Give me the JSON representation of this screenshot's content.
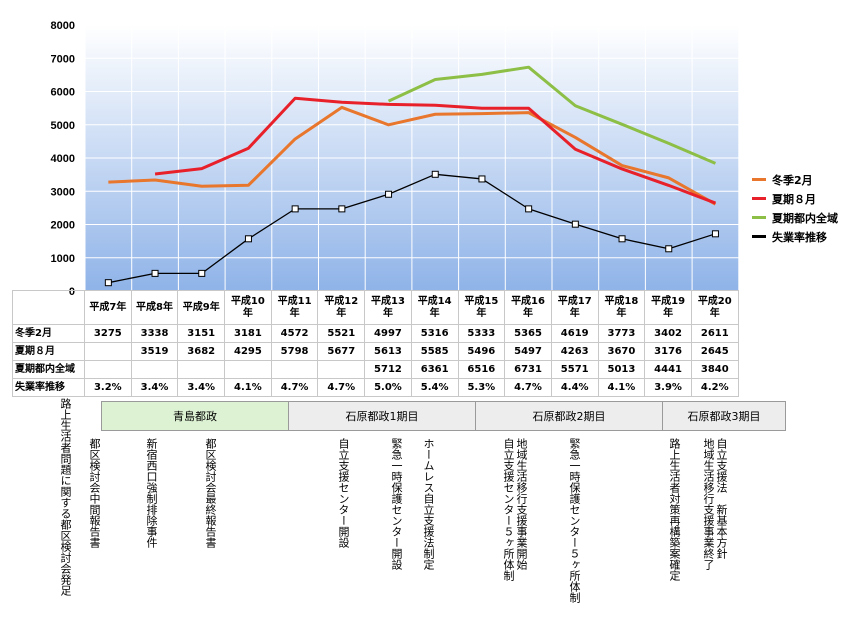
{
  "chart_data": {
    "type": "line",
    "categories": [
      "平成7年",
      "平成8年",
      "平成9年",
      "平成10年",
      "平成11年",
      "平成12年",
      "平成13年",
      "平成14年",
      "平成15年",
      "平成16年",
      "平成17年",
      "平成18年",
      "平成19年",
      "平成20年"
    ],
    "category_display": [
      [
        "平成7年"
      ],
      [
        "平成8年"
      ],
      [
        "平成9年"
      ],
      [
        "平成10",
        "年"
      ],
      [
        "平成11",
        "年"
      ],
      [
        "平成12",
        "年"
      ],
      [
        "平成13",
        "年"
      ],
      [
        "平成14",
        "年"
      ],
      [
        "平成15",
        "年"
      ],
      [
        "平成16",
        "年"
      ],
      [
        "平成17",
        "年"
      ],
      [
        "平成18",
        "年"
      ],
      [
        "平成19",
        "年"
      ],
      [
        "平成20",
        "年"
      ]
    ],
    "ylim": [
      0,
      8000
    ],
    "yticks": [
      "0",
      "1000",
      "2000",
      "3000",
      "4000",
      "5000",
      "6000",
      "7000",
      "8000"
    ],
    "grid": true,
    "legend_position": "right",
    "series": [
      {
        "name": "冬季2月",
        "color": "#e8762c",
        "values": [
          3275,
          3338,
          3151,
          3181,
          4572,
          5521,
          4997,
          5316,
          5333,
          5365,
          4619,
          3773,
          3402,
          2611
        ]
      },
      {
        "name": "夏期８月",
        "color": "#e8202a",
        "values": [
          null,
          3519,
          3682,
          4295,
          5798,
          5677,
          5613,
          5585,
          5496,
          5497,
          4263,
          3670,
          3176,
          2645
        ]
      },
      {
        "name": "夏期都内全域",
        "color": "#8dbf46",
        "values": [
          null,
          null,
          null,
          null,
          null,
          null,
          5712,
          6361,
          6516,
          6731,
          5571,
          5013,
          4441,
          3840
        ]
      },
      {
        "name": "失業率推移",
        "color": "#000000",
        "secondary_axis_note": "unemployment rate",
        "values": [
          3.2,
          3.4,
          3.4,
          4.1,
          4.7,
          4.7,
          5.0,
          5.4,
          5.3,
          4.7,
          4.4,
          4.1,
          3.9,
          4.2
        ],
        "display": [
          "3.2%",
          "3.4%",
          "3.4%",
          "4.1%",
          "4.7%",
          "4.7%",
          "5.0%",
          "5.4%",
          "5.3%",
          "4.7%",
          "4.4%",
          "4.1%",
          "3.9%",
          "4.2%"
        ],
        "plot_values": [
          250,
          530,
          530,
          1570,
          2470,
          2470,
          2910,
          3510,
          3370,
          2470,
          2010,
          1570,
          1270,
          1720
        ]
      }
    ]
  },
  "table": {
    "rows": [
      {
        "label": "冬季2月",
        "cells": [
          "3275",
          "3338",
          "3151",
          "3181",
          "4572",
          "5521",
          "4997",
          "5316",
          "5333",
          "5365",
          "4619",
          "3773",
          "3402",
          "2611"
        ]
      },
      {
        "label": "夏期８月",
        "cells": [
          "",
          "3519",
          "3682",
          "4295",
          "5798",
          "5677",
          "5613",
          "5585",
          "5496",
          "5497",
          "4263",
          "3670",
          "3176",
          "2645"
        ]
      },
      {
        "label": "夏期都内全域",
        "cells": [
          "",
          "",
          "",
          "",
          "",
          "",
          "5712",
          "6361",
          "6516",
          "6731",
          "5571",
          "5013",
          "4441",
          "3840"
        ]
      },
      {
        "label": "失業率推移",
        "cells": [
          "3.2%",
          "3.4%",
          "3.4%",
          "4.1%",
          "4.7%",
          "4.7%",
          "5.0%",
          "5.4%",
          "5.3%",
          "4.7%",
          "4.4%",
          "4.1%",
          "3.9%",
          "4.2%"
        ]
      }
    ]
  },
  "timeline": {
    "eras": [
      {
        "label": "青島都政",
        "color": "#ddf2d3"
      },
      {
        "label": "石原都政1期目",
        "color": "#ededed"
      },
      {
        "label": "石原都政2期目",
        "color": "#ededed"
      },
      {
        "label": "石原都政3期目",
        "color": "#ededed"
      }
    ],
    "events": [
      "路上生活者問題に関する都区検討会発足",
      "都区検討会中間報告書",
      "新宿西口強制排除事件",
      "都区検討会最終報告書",
      "自立支援センター開設",
      "緊急一時保護センター開設",
      "ホームレス自立支援法制定",
      "地域生活移行支援事業開始\n自立支援センター５ヶ所体制",
      "緊急一時保護センター５ヶ所体制",
      "路上生活者対策再構築案確定",
      "自立支援法　新基本方針\n地域生活移行支援事業終了"
    ]
  }
}
